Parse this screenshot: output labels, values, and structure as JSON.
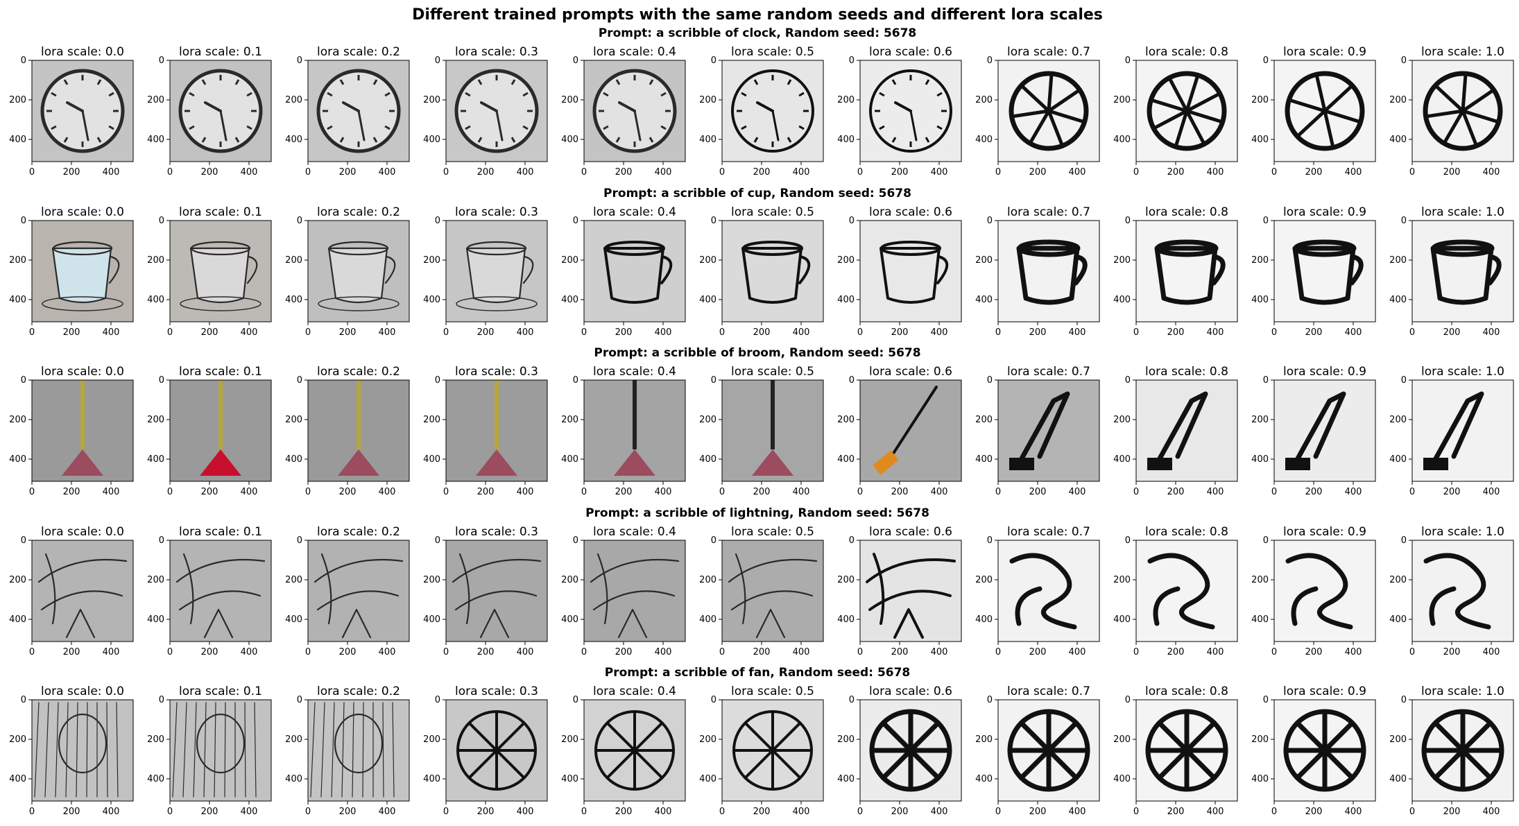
{
  "figure": {
    "title": "Different trained prompts with the same random seeds and different lora scales"
  },
  "rows": [
    {
      "prompt_title": "Prompt: a scribble of clock, Random seed: 5678",
      "subject": "clock",
      "panels": [
        {
          "label": "lora scale: 0.0",
          "style": "photo",
          "bg": "#c4c4c4"
        },
        {
          "label": "lora scale: 0.1",
          "style": "photo",
          "bg": "#c2c2c2"
        },
        {
          "label": "lora scale: 0.2",
          "style": "photo",
          "bg": "#c6c6c6"
        },
        {
          "label": "lora scale: 0.3",
          "style": "photo",
          "bg": "#c8c8c8"
        },
        {
          "label": "lora scale: 0.4",
          "style": "photo",
          "bg": "#c4c4c4"
        },
        {
          "label": "lora scale: 0.5",
          "style": "drawn",
          "bg": "#e6e6e6"
        },
        {
          "label": "lora scale: 0.6",
          "style": "drawn",
          "bg": "#ececec"
        },
        {
          "label": "lora scale: 0.7",
          "style": "blocky",
          "bg": "#f2f2f2"
        },
        {
          "label": "lora scale: 0.8",
          "style": "blocky",
          "bg": "#f4f4f4"
        },
        {
          "label": "lora scale: 0.9",
          "style": "blocky",
          "bg": "#f4f4f4"
        },
        {
          "label": "lora scale: 1.0",
          "style": "blocky",
          "bg": "#f2f2f2"
        }
      ]
    },
    {
      "prompt_title": "Prompt: a scribble of cup, Random seed: 5678",
      "subject": "cup",
      "panels": [
        {
          "label": "lora scale: 0.0",
          "style": "photo",
          "bg": "#b9b4ae"
        },
        {
          "label": "lora scale: 0.1",
          "style": "photo",
          "bg": "#bdbab6"
        },
        {
          "label": "lora scale: 0.2",
          "style": "photo",
          "bg": "#bfbfbf"
        },
        {
          "label": "lora scale: 0.3",
          "style": "photo",
          "bg": "#c6c6c6"
        },
        {
          "label": "lora scale: 0.4",
          "style": "drawn",
          "bg": "#cfcfcf"
        },
        {
          "label": "lora scale: 0.5",
          "style": "drawn",
          "bg": "#dadada"
        },
        {
          "label": "lora scale: 0.6",
          "style": "drawn",
          "bg": "#e8e8e8"
        },
        {
          "label": "lora scale: 0.7",
          "style": "blocky",
          "bg": "#f2f2f2"
        },
        {
          "label": "lora scale: 0.8",
          "style": "blocky",
          "bg": "#f4f4f4"
        },
        {
          "label": "lora scale: 0.9",
          "style": "blocky",
          "bg": "#f4f4f4"
        },
        {
          "label": "lora scale: 1.0",
          "style": "blocky",
          "bg": "#f2f2f2"
        }
      ]
    },
    {
      "prompt_title": "Prompt: a scribble of broom, Random seed: 5678",
      "subject": "broom",
      "panels": [
        {
          "label": "lora scale: 0.0",
          "style": "photo",
          "bg": "#9a9a9a"
        },
        {
          "label": "lora scale: 0.1",
          "style": "photo",
          "bg": "#9a9a9a"
        },
        {
          "label": "lora scale: 0.2",
          "style": "photo",
          "bg": "#9a9a9a"
        },
        {
          "label": "lora scale: 0.3",
          "style": "photo",
          "bg": "#9c9c9c"
        },
        {
          "label": "lora scale: 0.4",
          "style": "photo",
          "bg": "#a4a4a4"
        },
        {
          "label": "lora scale: 0.5",
          "style": "photo",
          "bg": "#a6a6a6"
        },
        {
          "label": "lora scale: 0.6",
          "style": "drawn",
          "bg": "#a8a8a8"
        },
        {
          "label": "lora scale: 0.7",
          "style": "blocky",
          "bg": "#b4b4b4"
        },
        {
          "label": "lora scale: 0.8",
          "style": "blocky",
          "bg": "#e8e8e8"
        },
        {
          "label": "lora scale: 0.9",
          "style": "blocky",
          "bg": "#ececec"
        },
        {
          "label": "lora scale: 1.0",
          "style": "blocky",
          "bg": "#f2f2f2"
        }
      ]
    },
    {
      "prompt_title": "Prompt: a scribble of lightning, Random seed: 5678",
      "subject": "lightning",
      "panels": [
        {
          "label": "lora scale: 0.0",
          "style": "photo",
          "bg": "#b4b4b4"
        },
        {
          "label": "lora scale: 0.1",
          "style": "photo",
          "bg": "#b4b4b4"
        },
        {
          "label": "lora scale: 0.2",
          "style": "photo",
          "bg": "#b2b2b2"
        },
        {
          "label": "lora scale: 0.3",
          "style": "photo",
          "bg": "#a8a8a8"
        },
        {
          "label": "lora scale: 0.4",
          "style": "photo",
          "bg": "#a8a8a8"
        },
        {
          "label": "lora scale: 0.5",
          "style": "photo",
          "bg": "#acacac"
        },
        {
          "label": "lora scale: 0.6",
          "style": "drawn",
          "bg": "#e4e4e4"
        },
        {
          "label": "lora scale: 0.7",
          "style": "blocky",
          "bg": "#f2f2f2"
        },
        {
          "label": "lora scale: 0.8",
          "style": "blocky",
          "bg": "#f4f4f4"
        },
        {
          "label": "lora scale: 0.9",
          "style": "blocky",
          "bg": "#f4f4f4"
        },
        {
          "label": "lora scale: 1.0",
          "style": "blocky",
          "bg": "#f2f2f2"
        }
      ]
    },
    {
      "prompt_title": "Prompt: a scribble of fan, Random seed: 5678",
      "subject": "fan",
      "panels": [
        {
          "label": "lora scale: 0.0",
          "style": "photo",
          "bg": "#c2c2c2"
        },
        {
          "label": "lora scale: 0.1",
          "style": "photo",
          "bg": "#c2c2c2"
        },
        {
          "label": "lora scale: 0.2",
          "style": "photo",
          "bg": "#c4c4c4"
        },
        {
          "label": "lora scale: 0.3",
          "style": "drawn",
          "bg": "#c8c8c8"
        },
        {
          "label": "lora scale: 0.4",
          "style": "drawn",
          "bg": "#d2d2d2"
        },
        {
          "label": "lora scale: 0.5",
          "style": "drawn",
          "bg": "#dcdcdc"
        },
        {
          "label": "lora scale: 0.6",
          "style": "blocky",
          "bg": "#ececec"
        },
        {
          "label": "lora scale: 0.7",
          "style": "blocky",
          "bg": "#f2f2f2"
        },
        {
          "label": "lora scale: 0.8",
          "style": "blocky",
          "bg": "#f4f4f4"
        },
        {
          "label": "lora scale: 0.9",
          "style": "blocky",
          "bg": "#f4f4f4"
        },
        {
          "label": "lora scale: 1.0",
          "style": "blocky",
          "bg": "#f2f2f2"
        }
      ]
    }
  ],
  "axes": {
    "x_ticks": [
      "0",
      "200",
      "400"
    ],
    "y_ticks": [
      "0",
      "200",
      "400"
    ]
  }
}
